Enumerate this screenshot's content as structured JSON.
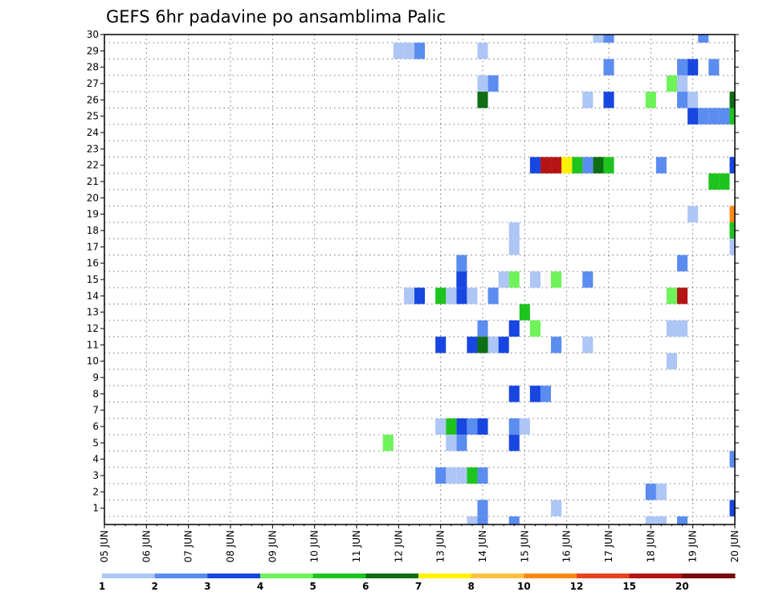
{
  "chart_data": {
    "type": "heatmap",
    "title": "GEFS 6hr padavine po ansamblima Palic",
    "xlabel": "",
    "ylabel": "",
    "x_tick_labels": [
      "05 JUN",
      "06 JUN",
      "07 JUN",
      "08 JUN",
      "09 JUN",
      "10 JUN",
      "11 JUN",
      "12 JUN",
      "13 JUN",
      "14 JUN",
      "15 JUN",
      "16 JUN",
      "17 JUN",
      "18 JUN",
      "19 JUN",
      "20 JUN"
    ],
    "y_tick_labels": [
      "1",
      "2",
      "3",
      "4",
      "5",
      "6",
      "7",
      "8",
      "9",
      "10",
      "11",
      "12",
      "13",
      "14",
      "15",
      "16",
      "17",
      "18",
      "19",
      "20",
      "21",
      "22",
      "23",
      "24",
      "25",
      "26",
      "27",
      "28",
      "29",
      "30"
    ],
    "xlim": [
      0,
      60
    ],
    "ylim": [
      0,
      30
    ],
    "grid": true,
    "colorbar": {
      "tick_labels": [
        "1",
        "2",
        "3",
        "4",
        "5",
        "6",
        "7",
        "8",
        "10",
        "12",
        "15",
        "20"
      ],
      "colors": [
        "#aec6f6",
        "#5b8cf0",
        "#1846e0",
        "#6ef35a",
        "#1dc41d",
        "#0d6e14",
        "#fff200",
        "#ffc040",
        "#fa8a14",
        "#e6421e",
        "#b41414",
        "#780a0a"
      ]
    },
    "cells": [
      [
        57,
        30,
        2
      ],
      [
        48,
        30,
        2
      ],
      [
        47,
        30,
        1
      ],
      [
        36,
        29,
        1
      ],
      [
        30,
        29,
        2
      ],
      [
        29,
        29,
        1
      ],
      [
        28,
        29,
        1
      ],
      [
        58,
        28,
        2
      ],
      [
        56,
        28,
        3
      ],
      [
        55,
        28,
        2
      ],
      [
        48,
        28,
        2
      ],
      [
        55,
        27,
        1
      ],
      [
        54,
        27,
        4
      ],
      [
        37,
        27,
        2
      ],
      [
        36,
        27,
        1
      ],
      [
        60,
        26,
        6
      ],
      [
        56,
        26,
        1
      ],
      [
        55,
        26,
        2
      ],
      [
        52,
        26,
        4
      ],
      [
        48,
        26,
        3
      ],
      [
        46,
        26,
        1
      ],
      [
        36,
        26,
        6
      ],
      [
        60,
        25,
        5
      ],
      [
        59,
        25,
        2
      ],
      [
        58,
        25,
        2
      ],
      [
        57,
        25,
        2
      ],
      [
        56,
        25,
        3
      ],
      [
        60,
        22,
        3
      ],
      [
        53,
        22,
        2
      ],
      [
        48,
        22,
        5
      ],
      [
        47,
        22,
        6
      ],
      [
        46,
        22,
        2
      ],
      [
        45,
        22,
        5
      ],
      [
        44,
        22,
        7
      ],
      [
        43,
        22,
        11
      ],
      [
        42,
        22,
        11
      ],
      [
        41,
        22,
        3
      ],
      [
        59,
        21,
        5
      ],
      [
        58,
        21,
        5
      ],
      [
        60,
        19,
        9
      ],
      [
        56,
        19,
        1
      ],
      [
        60,
        18,
        5
      ],
      [
        39,
        18,
        1
      ],
      [
        60,
        17,
        1
      ],
      [
        39,
        17,
        1
      ],
      [
        55,
        16,
        2
      ],
      [
        34,
        16,
        2
      ],
      [
        46,
        15,
        2
      ],
      [
        43,
        15,
        4
      ],
      [
        41,
        15,
        1
      ],
      [
        39,
        15,
        4
      ],
      [
        38,
        15,
        1
      ],
      [
        34,
        15,
        3
      ],
      [
        55,
        14,
        11
      ],
      [
        54,
        14,
        4
      ],
      [
        37,
        14,
        2
      ],
      [
        35,
        14,
        1
      ],
      [
        34,
        14,
        3
      ],
      [
        33,
        14,
        1
      ],
      [
        32,
        14,
        5
      ],
      [
        30,
        14,
        3
      ],
      [
        29,
        14,
        1
      ],
      [
        40,
        13,
        5
      ],
      [
        41,
        12,
        4
      ],
      [
        39,
        12,
        3
      ],
      [
        36,
        12,
        2
      ],
      [
        55,
        12,
        1
      ],
      [
        54,
        12,
        1
      ],
      [
        46,
        11,
        1
      ],
      [
        43,
        11,
        2
      ],
      [
        38,
        11,
        3
      ],
      [
        37,
        11,
        1
      ],
      [
        36,
        11,
        6
      ],
      [
        35,
        11,
        3
      ],
      [
        32,
        11,
        3
      ],
      [
        54,
        10,
        1
      ],
      [
        42,
        8,
        2
      ],
      [
        41,
        8,
        3
      ],
      [
        39,
        8,
        3
      ],
      [
        40,
        6,
        1
      ],
      [
        39,
        6,
        2
      ],
      [
        36,
        6,
        3
      ],
      [
        35,
        6,
        2
      ],
      [
        34,
        6,
        3
      ],
      [
        33,
        6,
        5
      ],
      [
        32,
        6,
        1
      ],
      [
        39,
        5,
        3
      ],
      [
        34,
        5,
        2
      ],
      [
        33,
        5,
        1
      ],
      [
        27,
        5,
        4
      ],
      [
        60,
        4,
        2
      ],
      [
        36,
        3,
        2
      ],
      [
        35,
        3,
        5
      ],
      [
        34,
        3,
        1
      ],
      [
        33,
        3,
        1
      ],
      [
        32,
        3,
        2
      ],
      [
        53,
        2,
        1
      ],
      [
        52,
        2,
        2
      ],
      [
        60,
        1,
        3
      ],
      [
        43,
        1,
        1
      ],
      [
        36,
        1,
        2
      ],
      [
        55,
        0,
        2
      ],
      [
        53,
        0,
        1
      ],
      [
        52,
        0,
        1
      ],
      [
        39,
        0,
        2
      ],
      [
        36,
        0,
        2
      ],
      [
        35,
        0,
        1
      ]
    ]
  }
}
